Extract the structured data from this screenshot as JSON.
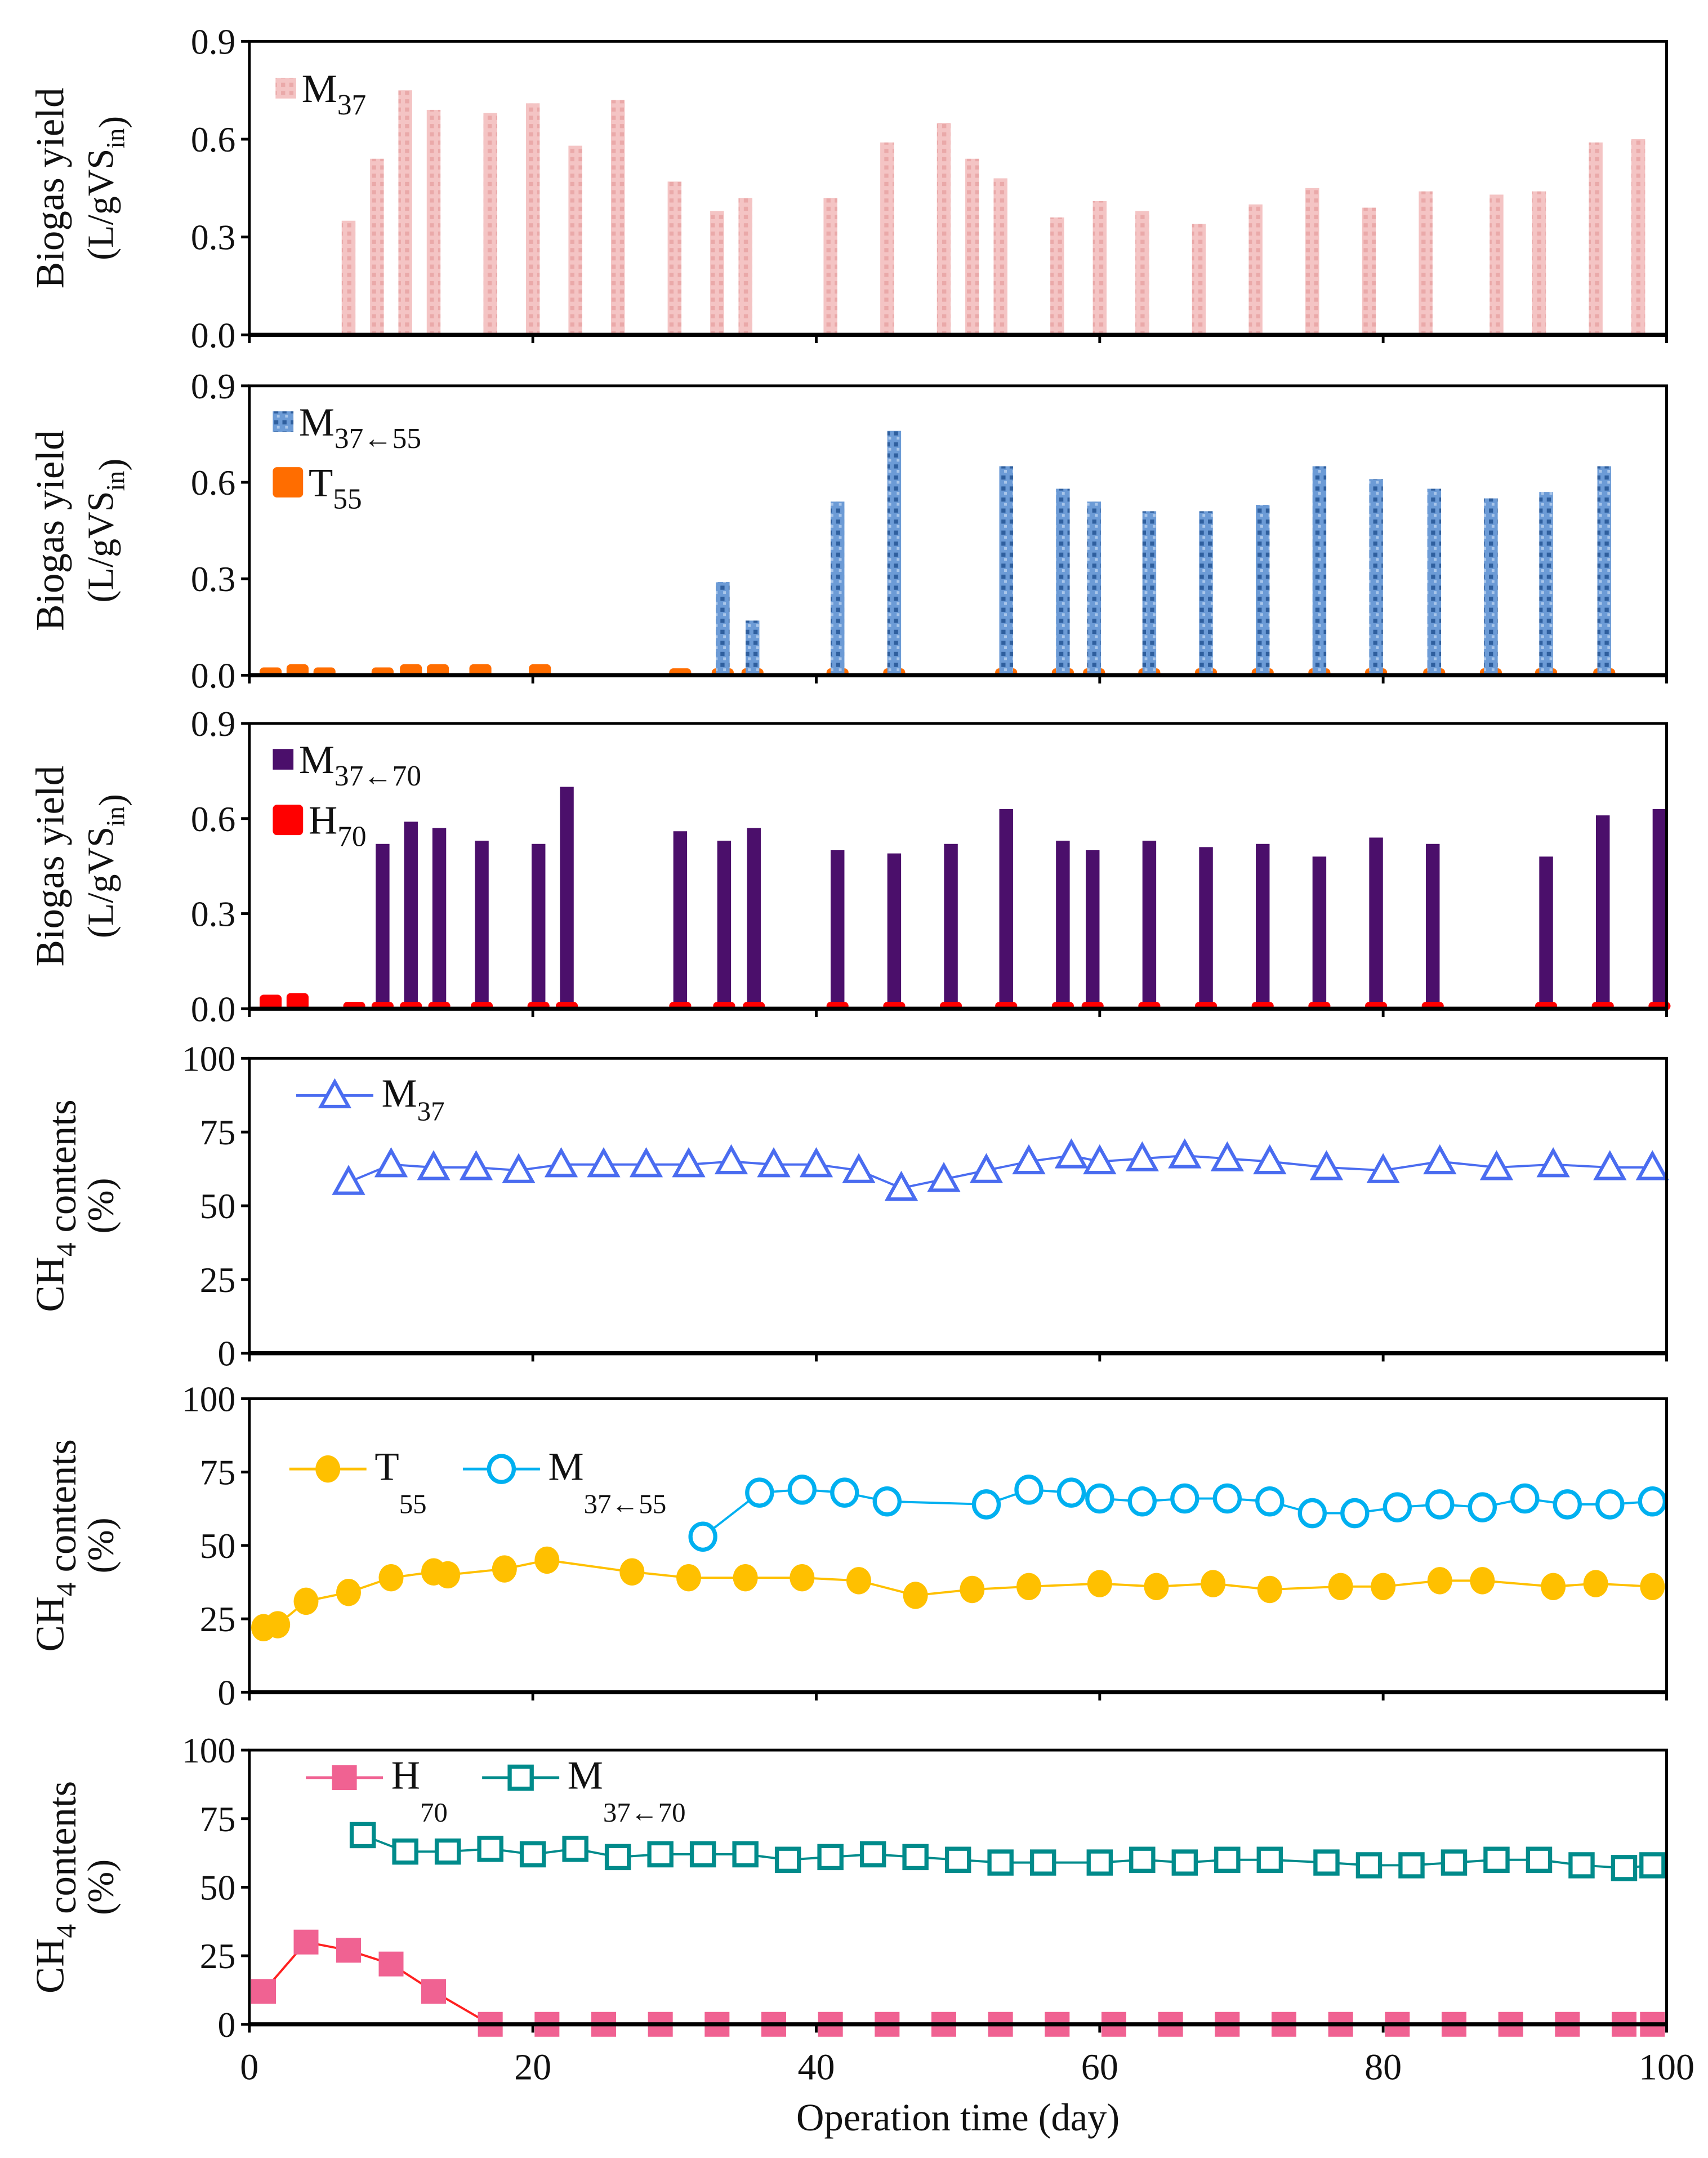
{
  "chart_data": [
    {
      "type": "bar",
      "ylabel": [
        [
          {
            "t": "Biogas yield"
          }
        ],
        [
          {
            "t": "(L/gVS"
          },
          {
            "t": "in",
            "sub": true
          },
          {
            "t": ")"
          }
        ]
      ],
      "ylim": [
        0,
        0.9
      ],
      "yticks": [
        "0.0",
        "0.3",
        "0.6",
        "0.9"
      ],
      "ytick_values": [
        0,
        0.3,
        0.6,
        0.9
      ],
      "xlim": [
        0,
        100
      ],
      "legend": [
        {
          "key": "M37",
          "main": "M",
          "sub": "37",
          "color": "#f2b8b8",
          "style": "bar-pattern"
        }
      ],
      "series": [
        {
          "name": "M37",
          "color": "#f2b8b8",
          "style": "bar-pattern",
          "x": [
            7,
            9,
            11,
            13,
            17,
            20,
            23,
            26,
            30,
            33,
            35,
            41,
            45,
            49,
            51,
            53,
            57,
            60,
            63,
            67,
            71,
            75,
            79,
            83,
            88,
            91,
            95,
            98
          ],
          "y": [
            0.35,
            0.54,
            0.75,
            0.69,
            0.68,
            0.71,
            0.58,
            0.72,
            0.47,
            0.38,
            0.42,
            0.42,
            0.59,
            0.65,
            0.54,
            0.48,
            0.36,
            0.41,
            0.38,
            0.34,
            0.4,
            0.45,
            0.39,
            0.44,
            0.43,
            0.44,
            0.59,
            0.6
          ]
        }
      ]
    },
    {
      "type": "bar",
      "ylabel": [
        [
          {
            "t": "Biogas yield"
          }
        ],
        [
          {
            "t": "(L/gVS"
          },
          {
            "t": "in",
            "sub": true
          },
          {
            "t": ")"
          }
        ]
      ],
      "ylim": [
        0,
        0.9
      ],
      "yticks": [
        "0.0",
        "0.3",
        "0.6",
        "0.9"
      ],
      "ytick_values": [
        0,
        0.3,
        0.6,
        0.9
      ],
      "xlim": [
        0,
        100
      ],
      "legend": [
        {
          "key": "M37←55",
          "main": "M",
          "sub": "37←55",
          "color": "#4f81bd",
          "style": "bar-mottled"
        },
        {
          "key": "T55",
          "main": "T",
          "sub": "55",
          "color": "#ff6d00",
          "style": "bar-round"
        }
      ],
      "series": [
        {
          "name": "T55",
          "color": "#ff6d00",
          "style": "bar-round",
          "x": [
            1.5,
            3.4,
            5.3,
            9.4,
            11.4,
            13.3,
            16.3,
            20.5,
            30.4,
            33.4,
            35.5,
            41.5,
            45.5,
            53.4,
            57.4,
            59.6,
            63.5,
            67.5,
            71.5,
            75.5,
            79.5,
            83.6,
            87.6,
            91.5,
            95.6
          ],
          "y": [
            0.02,
            0.03,
            0.02,
            0.02,
            0.03,
            0.03,
            0.03,
            0.03,
            0.01,
            0.01,
            0.01,
            0.01,
            0.01,
            0.01,
            0.01,
            0.01,
            0.01,
            0.015,
            0.01,
            0.015,
            0.01,
            0.01,
            0.01,
            0.01,
            0.01
          ]
        },
        {
          "name": "M37←55",
          "color": "#4f81bd",
          "style": "bar-mottled",
          "x": [
            33.4,
            35.5,
            41.5,
            45.5,
            53.4,
            57.4,
            59.6,
            63.5,
            67.5,
            71.5,
            75.5,
            79.5,
            83.6,
            87.6,
            91.5,
            95.6
          ],
          "y": [
            0.29,
            0.17,
            0.54,
            0.76,
            0.65,
            0.58,
            0.54,
            0.51,
            0.51,
            0.53,
            0.65,
            0.61,
            0.58,
            0.55,
            0.57,
            0.65
          ]
        }
      ]
    },
    {
      "type": "bar",
      "ylabel": [
        [
          {
            "t": "Biogas yield"
          }
        ],
        [
          {
            "t": "(L/gVS"
          },
          {
            "t": "in",
            "sub": true
          },
          {
            "t": ")"
          }
        ]
      ],
      "ylim": [
        0,
        0.9
      ],
      "yticks": [
        "0.0",
        "0.3",
        "0.6",
        "0.9"
      ],
      "ytick_values": [
        0,
        0.3,
        0.6,
        0.9
      ],
      "xlim": [
        0,
        100
      ],
      "legend": [
        {
          "key": "M37←70",
          "main": "M",
          "sub": "37←70",
          "color": "#4b0f6b",
          "style": "bar"
        },
        {
          "key": "H70",
          "main": "H",
          "sub": "70",
          "color": "#ff0000",
          "style": "bar-round"
        }
      ],
      "series": [
        {
          "name": "M37←70",
          "color": "#4b0f6b",
          "style": "bar",
          "x": [
            9.4,
            11.4,
            13.4,
            16.4,
            20.4,
            22.4,
            30.4,
            33.5,
            35.6,
            41.5,
            45.5,
            49.5,
            53.4,
            57.4,
            59.5,
            63.5,
            67.5,
            71.5,
            75.5,
            79.5,
            83.5,
            91.5,
            95.5,
            99.5
          ],
          "y": [
            0.52,
            0.59,
            0.57,
            0.53,
            0.52,
            0.7,
            0.56,
            0.53,
            0.57,
            0.5,
            0.49,
            0.52,
            0.63,
            0.53,
            0.5,
            0.53,
            0.51,
            0.52,
            0.48,
            0.54,
            0.52,
            0.48,
            0.61,
            0.63
          ]
        },
        {
          "name": "H70",
          "color": "#ff0000",
          "style": "bar-round",
          "x": [
            1.5,
            3.4,
            7.4,
            9.4,
            11.4,
            13.4,
            16.4,
            20.4,
            22.4,
            30.4,
            33.5,
            35.6,
            41.5,
            45.5,
            49.5,
            53.4,
            57.4,
            59.5,
            63.5,
            67.5,
            71.5,
            75.5,
            79.5,
            83.5,
            91.5,
            95.5,
            99.5
          ],
          "y": [
            0.04,
            0.045,
            0.01,
            0.003,
            0.003,
            0.003,
            0.003,
            0.003,
            0.003,
            0.003,
            0.003,
            0.003,
            0.003,
            0.003,
            0.003,
            0.003,
            0.003,
            0.003,
            0.003,
            0.003,
            0.003,
            0.003,
            0.003,
            0.003,
            0.003,
            0.003,
            0.003
          ]
        }
      ]
    },
    {
      "type": "line",
      "ylabel": [
        [
          {
            "t": "CH"
          },
          {
            "t": "4",
            "sub": true
          },
          {
            "t": " contents"
          }
        ],
        [
          {
            "t": "(%)"
          }
        ]
      ],
      "ylim": [
        0,
        100
      ],
      "yticks": [
        "0",
        "25",
        "50",
        "75",
        "100"
      ],
      "ytick_values": [
        0,
        25,
        50,
        75,
        100
      ],
      "xlim": [
        0,
        100
      ],
      "legend": [
        {
          "key": "M37",
          "main": "M",
          "sub": "37",
          "color": "#4a6cf0",
          "marker": "triangle-open"
        }
      ],
      "series": [
        {
          "name": "M37",
          "color": "#4a6cf0",
          "marker": "triangle-open",
          "x": [
            7,
            10,
            13,
            16,
            19,
            22,
            25,
            28,
            31,
            34,
            37,
            40,
            43,
            46,
            49,
            52,
            55,
            58,
            60,
            63,
            66,
            69,
            72,
            76,
            80,
            84,
            88,
            92,
            96,
            99
          ],
          "y": [
            58,
            64,
            63,
            63,
            62,
            64,
            64,
            64,
            64,
            65,
            64,
            64,
            62,
            56,
            59,
            62,
            65,
            67,
            65,
            66,
            67,
            66,
            65,
            63,
            62,
            65,
            63,
            64,
            63,
            63
          ]
        }
      ]
    },
    {
      "type": "line",
      "ylabel": [
        [
          {
            "t": "CH"
          },
          {
            "t": "4",
            "sub": true
          },
          {
            "t": " contents"
          }
        ],
        [
          {
            "t": "(%)"
          }
        ]
      ],
      "ylim": [
        0,
        100
      ],
      "yticks": [
        "0",
        "25",
        "50",
        "75",
        "100"
      ],
      "ytick_values": [
        0,
        25,
        50,
        75,
        100
      ],
      "xlim": [
        0,
        100
      ],
      "legend": [
        {
          "key": "T55",
          "main": "T",
          "sub": "55",
          "color": "#ffc000",
          "marker": "circle-filled"
        },
        {
          "key": "M37←55",
          "main": "M",
          "sub": "37←55",
          "color": "#00b0f0",
          "marker": "circle-open"
        }
      ],
      "series": [
        {
          "name": "T55",
          "color": "#ffc000",
          "marker": "circle-filled",
          "x": [
            1,
            2,
            4,
            7,
            10,
            13,
            14,
            18,
            21,
            27,
            31,
            35,
            39,
            43,
            47,
            51,
            55,
            60,
            64,
            68,
            72,
            77,
            80,
            84,
            87,
            92,
            95,
            99
          ],
          "y": [
            22,
            23,
            31,
            34,
            39,
            41,
            40,
            42,
            45,
            41,
            39,
            39,
            39,
            38,
            33,
            35,
            36,
            37,
            36,
            37,
            35,
            36,
            36,
            38,
            38,
            36,
            37,
            36
          ]
        },
        {
          "name": "M37←55",
          "color": "#00b0f0",
          "marker": "circle-open",
          "x": [
            32,
            36,
            39,
            42,
            45,
            52,
            55,
            58,
            60,
            63,
            66,
            69,
            72,
            75,
            78,
            81,
            84,
            87,
            90,
            93,
            96,
            99
          ],
          "y": [
            53,
            68,
            69,
            68,
            65,
            64,
            69,
            68,
            66,
            65,
            66,
            66,
            65,
            61,
            61,
            63,
            64,
            63,
            66,
            64,
            64,
            65
          ]
        }
      ]
    },
    {
      "type": "line",
      "ylabel": [
        [
          {
            "t": "CH"
          },
          {
            "t": "4",
            "sub": true
          },
          {
            "t": " contents"
          }
        ],
        [
          {
            "t": "(%)"
          }
        ]
      ],
      "ylim": [
        0,
        100
      ],
      "yticks": [
        "0",
        "25",
        "50",
        "75",
        "100"
      ],
      "ytick_values": [
        0,
        25,
        50,
        75,
        100
      ],
      "xlim": [
        0,
        100
      ],
      "xticks": [
        "0",
        "20",
        "40",
        "60",
        "80",
        "100"
      ],
      "xtick_values": [
        0,
        20,
        40,
        60,
        80,
        100
      ],
      "xlabel": "Operation time (day)",
      "legend": [
        {
          "key": "H70",
          "main": "H",
          "sub": "70",
          "color": "#f06292",
          "marker": "square-filled"
        },
        {
          "key": "M37←70",
          "main": "M",
          "sub": "37←70",
          "color": "#008b8b",
          "marker": "square-open"
        }
      ],
      "series": [
        {
          "name": "H70",
          "color": "#f06292",
          "linecolor": "#ff2020",
          "marker": "square-filled",
          "x": [
            1,
            4,
            7,
            10,
            13,
            17,
            21,
            25,
            29,
            33,
            37,
            41,
            45,
            49,
            53,
            57,
            61,
            65,
            69,
            73,
            77,
            81,
            85,
            89,
            93,
            97,
            99
          ],
          "y": [
            12,
            30,
            27,
            22,
            12,
            0,
            0,
            0,
            0,
            0,
            0,
            0,
            0,
            0,
            0,
            0,
            0,
            0,
            0,
            0,
            0,
            0,
            0,
            0,
            0,
            0,
            0
          ]
        },
        {
          "name": "M37←70",
          "color": "#008b8b",
          "marker": "square-open",
          "x": [
            8,
            11,
            14,
            17,
            20,
            23,
            26,
            29,
            32,
            35,
            38,
            41,
            44,
            47,
            50,
            53,
            56,
            60,
            63,
            66,
            69,
            72,
            76,
            79,
            82,
            85,
            88,
            91,
            94,
            97,
            99
          ],
          "y": [
            69,
            63,
            63,
            64,
            62,
            64,
            61,
            62,
            62,
            62,
            60,
            61,
            62,
            61,
            60,
            59,
            59,
            59,
            60,
            59,
            60,
            60,
            59,
            58,
            58,
            59,
            60,
            60,
            58,
            57,
            58
          ]
        }
      ]
    }
  ]
}
